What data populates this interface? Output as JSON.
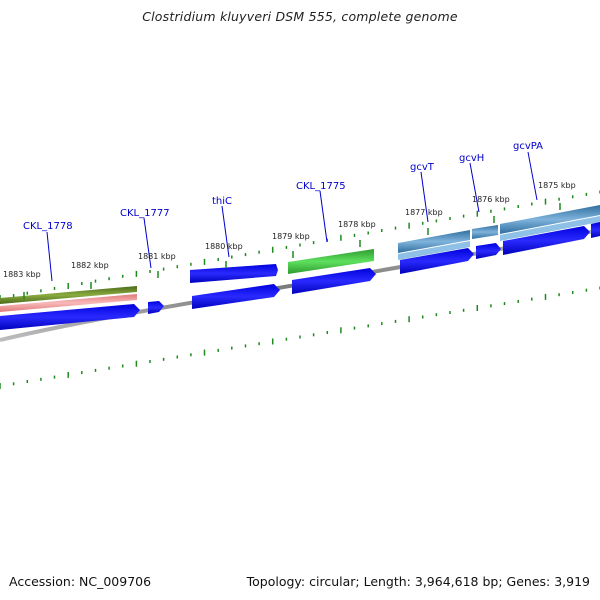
{
  "title": "Clostridium kluyveri DSM 555, complete genome",
  "footer": {
    "accession": "Accession: NC_009706",
    "summary": "Topology: circular; Length: 3,964,618 bp; Genes: 3,919"
  },
  "colors": {
    "backbone": "#8c8c8c",
    "tick": "#1e8a1e",
    "cds": "#0000ee",
    "gene_label": "#0000cc",
    "feature_green": "#44cc44",
    "feature_olive": "#6b8c2a",
    "feature_pink": "#f09a9a",
    "feature_steel": "#4a88bb"
  },
  "scale_labels": [
    {
      "id": "1883",
      "text": "1883 kbp"
    },
    {
      "id": "1882",
      "text": "1882 kbp"
    },
    {
      "id": "1881",
      "text": "1881 kbp"
    },
    {
      "id": "1880",
      "text": "1880 kbp"
    },
    {
      "id": "1879",
      "text": "1879 kbp"
    },
    {
      "id": "1878",
      "text": "1878 kbp"
    },
    {
      "id": "1877",
      "text": "1877 kbp"
    },
    {
      "id": "1876",
      "text": "1876 kbp"
    },
    {
      "id": "1875",
      "text": "1875 kbp"
    }
  ],
  "gene_labels": [
    {
      "id": "CKL_1778",
      "text": "CKL_1778"
    },
    {
      "id": "CKL_1777",
      "text": "CKL_1777"
    },
    {
      "id": "thiC",
      "text": "thiC"
    },
    {
      "id": "CKL_1775",
      "text": "CKL_1775"
    },
    {
      "id": "gcvT",
      "text": "gcvT"
    },
    {
      "id": "gcvH",
      "text": "gcvH"
    },
    {
      "id": "gcvPA",
      "text": "gcvPA"
    }
  ]
}
